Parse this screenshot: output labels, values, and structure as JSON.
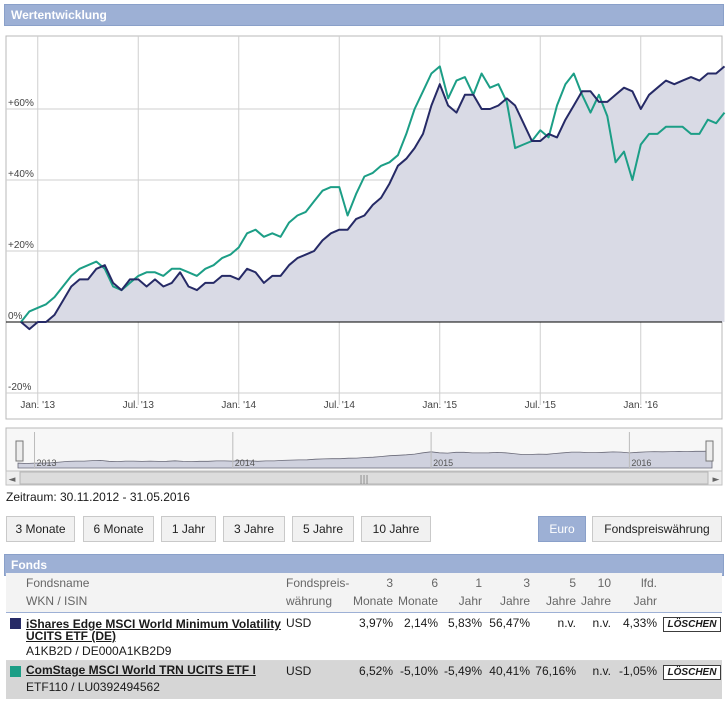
{
  "panel_title": "Wertentwicklung",
  "chart_data": {
    "type": "line",
    "title": "Wertentwicklung",
    "xlabel": "",
    "ylabel": "",
    "x_start": "2012-11-30",
    "x_end": "2016-05-31",
    "x_tick_labels": [
      "Jan. '13",
      "Jul. '13",
      "Jan. '14",
      "Jul. '14",
      "Jan. '15",
      "Jul. '15",
      "Jan. '16"
    ],
    "y_tick_labels": [
      "+60%",
      "+40%",
      "+20%",
      "0%",
      "-20%"
    ],
    "ylim": [
      -20,
      78
    ],
    "grid": true,
    "series": [
      {
        "name": "iShares Edge MSCI World Minimum Volatility UCITS ETF (DE)",
        "color": "#262a66",
        "x_months": [
          0,
          0.5,
          1,
          1.5,
          2,
          2.5,
          3,
          3.5,
          4,
          4.5,
          5,
          5.5,
          6,
          6.5,
          7,
          7.5,
          8,
          8.5,
          9,
          9.5,
          10,
          10.5,
          11,
          11.5,
          12,
          12.5,
          13,
          13.5,
          14,
          14.5,
          15,
          15.5,
          16,
          16.5,
          17,
          17.5,
          18,
          18.5,
          19,
          19.5,
          20,
          20.5,
          21,
          21.5,
          22,
          22.5,
          23,
          23.5,
          24,
          24.5,
          25,
          25.5,
          26,
          26.5,
          27,
          27.5,
          28,
          28.5,
          29,
          29.5,
          30,
          30.5,
          31,
          31.5,
          32,
          32.5,
          33,
          33.5,
          34,
          34.5,
          35,
          35.5,
          36,
          36.5,
          37,
          37.5,
          38,
          38.5,
          39,
          39.5,
          40,
          40.5,
          41,
          41.5,
          42
        ],
        "values": [
          0,
          -2,
          0,
          0,
          2,
          6,
          10,
          12,
          12,
          15,
          16,
          11,
          9,
          12,
          12,
          10,
          12,
          10,
          11,
          14,
          10,
          9,
          11,
          11,
          13,
          13,
          12,
          15,
          14,
          11,
          13,
          13,
          16,
          18,
          19,
          20,
          23,
          25,
          26,
          26,
          29,
          30,
          33,
          35,
          39,
          44,
          46,
          49,
          53,
          61,
          67,
          61,
          59,
          64,
          64,
          60,
          60,
          61,
          63,
          61,
          56,
          51,
          51,
          53,
          52,
          57,
          61,
          65,
          65,
          62,
          62,
          64,
          66,
          65,
          60,
          64,
          66,
          68,
          67,
          68,
          69,
          68,
          70,
          70,
          72
        ]
      },
      {
        "name": "ComStage MSCI World TRN UCITS ETF I",
        "color": "#1c9e86",
        "x_months": [
          0,
          0.5,
          1,
          1.5,
          2,
          2.5,
          3,
          3.5,
          4,
          4.5,
          5,
          5.5,
          6,
          6.5,
          7,
          7.5,
          8,
          8.5,
          9,
          9.5,
          10,
          10.5,
          11,
          11.5,
          12,
          12.5,
          13,
          13.5,
          14,
          14.5,
          15,
          15.5,
          16,
          16.5,
          17,
          17.5,
          18,
          18.5,
          19,
          19.5,
          20,
          20.5,
          21,
          21.5,
          22,
          22.5,
          23,
          23.5,
          24,
          24.5,
          25,
          25.5,
          26,
          26.5,
          27,
          27.5,
          28,
          28.5,
          29,
          29.5,
          30,
          30.5,
          31,
          31.5,
          32,
          32.5,
          33,
          33.5,
          34,
          34.5,
          35,
          35.5,
          36,
          36.5,
          37,
          37.5,
          38,
          38.5,
          39,
          39.5,
          40,
          40.5,
          41,
          41.5,
          42
        ],
        "values": [
          0,
          3,
          4,
          5,
          7,
          10,
          13,
          15,
          16,
          17,
          15,
          10,
          9,
          11,
          13,
          14,
          14,
          13,
          15,
          15,
          14,
          13,
          15,
          16,
          18,
          19,
          21,
          25,
          26,
          24,
          25,
          24,
          28,
          30,
          31,
          34,
          37,
          38,
          38,
          30,
          36,
          41,
          42,
          44,
          45,
          47,
          53,
          60,
          65,
          70,
          72,
          63,
          68,
          69,
          64,
          70,
          66,
          67,
          62,
          49,
          50,
          51,
          54,
          52,
          61,
          67,
          70,
          64,
          59,
          64,
          58,
          45,
          48,
          40,
          50,
          53,
          53,
          55,
          55,
          55,
          53,
          53,
          57,
          56,
          59
        ]
      }
    ]
  },
  "navigator": {
    "year_labels": [
      "2013",
      "2014",
      "2015",
      "2016"
    ],
    "scroll_left_glyph": "◄",
    "scroll_right_glyph": "►",
    "scroll_thumb_glyph": "|||"
  },
  "period_text": "Zeitraum: 30.11.2012 - 31.05.2016",
  "period_buttons": [
    "3 Monate",
    "6 Monate",
    "1 Jahr",
    "3 Jahre",
    "5 Jahre",
    "10 Jahre"
  ],
  "currency_buttons": {
    "euro": "Euro",
    "fund_currency": "Fondspreiswährung"
  },
  "funds_section": {
    "title": "Fonds",
    "headers": {
      "name_line1": "Fondsname",
      "name_line2": "WKN / ISIN",
      "currency_line1": "Fondspreis-",
      "currency_line2": "währung",
      "m3_line1": "3",
      "m3_line2": "Monate",
      "m6_line1": "6",
      "m6_line2": "Monate",
      "y1_line1": "1",
      "y1_line2": "Jahr",
      "y3_line1": "3",
      "y3_line2": "Jahre",
      "y5_line1": "5",
      "y5_line2": "Jahre",
      "y10_line1": "10",
      "y10_line2": "Jahre",
      "cur_line1": "lfd.",
      "cur_line2": "Jahr"
    },
    "rows": [
      {
        "color": "#262a66",
        "name": "iShares Edge MSCI World Minimum Volatility UCITS ETF (DE)",
        "ids": "A1KB2D / DE000A1KB2D9",
        "currency": "USD",
        "m3": "3,97%",
        "m6": "2,14%",
        "y1": "5,83%",
        "y3": "56,47%",
        "y5": "n.v.",
        "y10": "n.v.",
        "ytd": "4,33%",
        "delete_label": "LÖSCHEN"
      },
      {
        "color": "#1c9e86",
        "name": "ComStage MSCI World TRN UCITS ETF I",
        "ids": "ETF110 / LU0392494562",
        "currency": "USD",
        "m3": "6,52%",
        "m6": "-5,10%",
        "y1": "-5,49%",
        "y3": "40,41%",
        "y5": "76,16%",
        "y10": "n.v.",
        "ytd": "-1,05%",
        "delete_label": "LÖSCHEN"
      }
    ]
  }
}
